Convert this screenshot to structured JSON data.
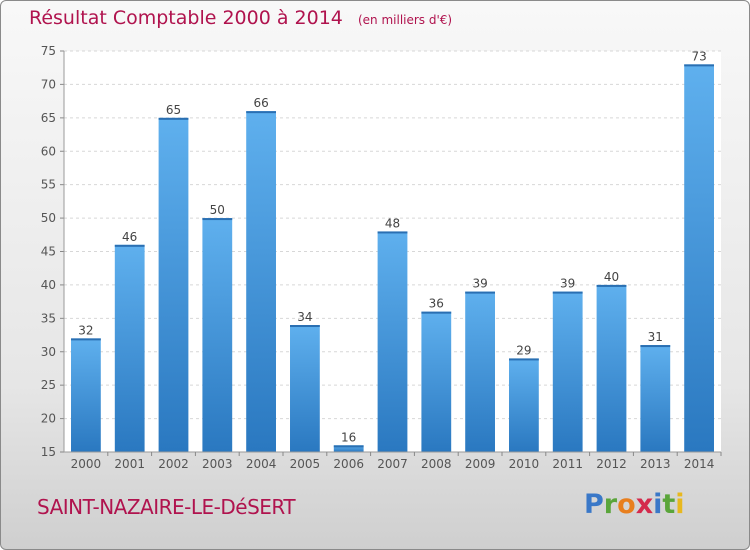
{
  "chart_data": {
    "type": "bar",
    "title": "Résultat Comptable 2000 à 2014",
    "subtitle": "(en milliers d'€)",
    "categories": [
      "2000",
      "2001",
      "2002",
      "2003",
      "2004",
      "2005",
      "2006",
      "2007",
      "2008",
      "2009",
      "2010",
      "2011",
      "2012",
      "2013",
      "2014"
    ],
    "values": [
      32,
      46,
      65,
      50,
      66,
      34,
      16,
      48,
      36,
      39,
      29,
      39,
      40,
      31,
      73
    ],
    "ylim": [
      15,
      75
    ],
    "yticks": [
      15,
      20,
      25,
      30,
      35,
      40,
      45,
      50,
      55,
      60,
      65,
      70,
      75
    ],
    "grid": true,
    "bar_color": "#3d8fd6"
  },
  "footer": {
    "commune": "SAINT-NAZAIRE-LE-DéSERT"
  },
  "logo": {
    "letters": [
      {
        "ch": "P",
        "color": "#3a78c8"
      },
      {
        "ch": "r",
        "color": "#5aa53a"
      },
      {
        "ch": "o",
        "color": "#e87f1e"
      },
      {
        "ch": "x",
        "color": "#d42a4c"
      },
      {
        "ch": "i",
        "color": "#3a78c8"
      },
      {
        "ch": "t",
        "color": "#5aa53a"
      },
      {
        "ch": "i",
        "color": "#e8b81e"
      }
    ]
  }
}
